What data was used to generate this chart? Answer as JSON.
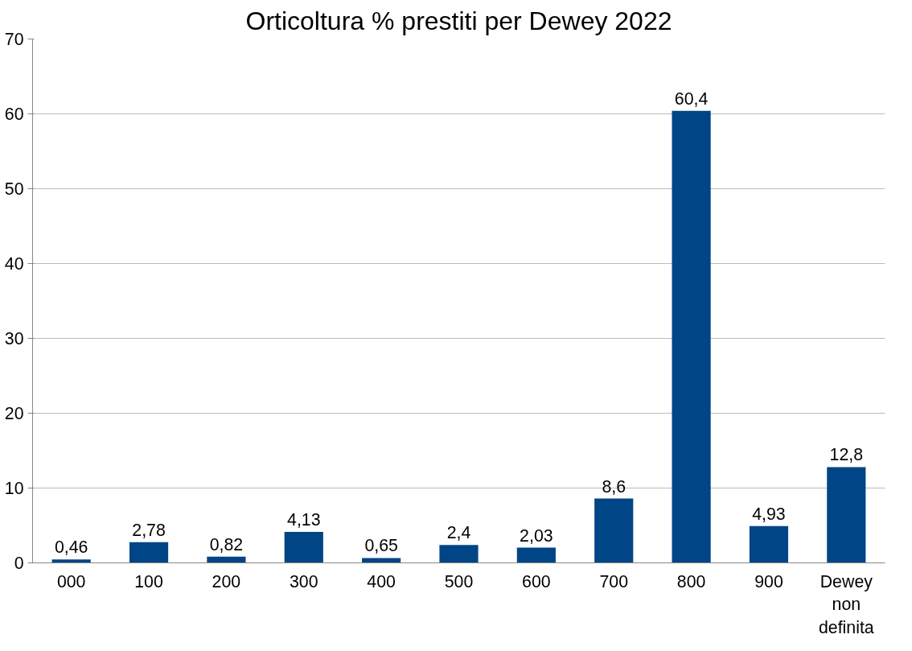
{
  "chart_data": {
    "type": "bar",
    "title": "Orticoltura % prestiti per Dewey 2022",
    "categories": [
      "000",
      "100",
      "200",
      "300",
      "400",
      "500",
      "600",
      "700",
      "800",
      "900",
      "Dewey non definita"
    ],
    "values": [
      0.46,
      2.78,
      0.82,
      4.13,
      0.65,
      2.4,
      2.03,
      8.6,
      60.4,
      4.93,
      12.8
    ],
    "value_labels": [
      "0,46",
      "2,78",
      "0,82",
      "4,13",
      "0,65",
      "2,4",
      "2,03",
      "8,6",
      "60,4",
      "4,93",
      "12,8"
    ],
    "color": "#004586",
    "ylim": [
      0,
      70
    ],
    "yticks": [
      0,
      10,
      20,
      30,
      40,
      50,
      60,
      70
    ],
    "grid": "y"
  }
}
